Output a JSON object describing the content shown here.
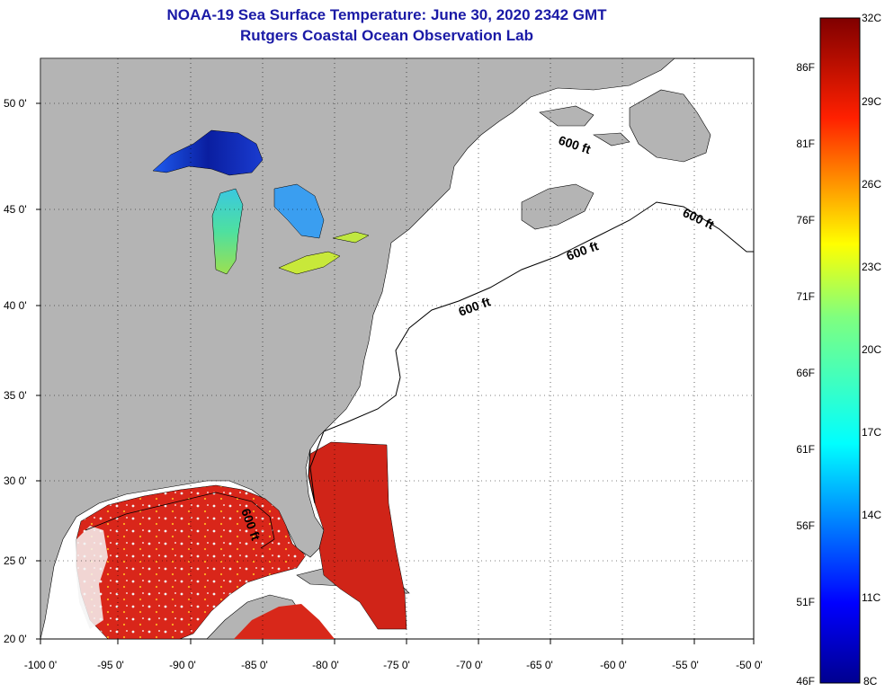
{
  "title": "NOAA-19 Sea Surface Temperature:  June 30, 2020 2342 GMT",
  "subtitle": "Rutgers Coastal Ocean Observation Lab",
  "map": {
    "lon_ticks": [
      "-100 0'",
      "-95 0'",
      "-90 0'",
      "-85 0'",
      "-80 0'",
      "-75 0'",
      "-70 0'",
      "-65 0'",
      "-60 0'",
      "-55 0'",
      "-50 0'"
    ],
    "lat_ticks": [
      "50 0'",
      "45 0'",
      "40 0'",
      "35 0'",
      "30 0'",
      "25 0'",
      "20 0'"
    ],
    "contour_label": "600 ft",
    "colors": {
      "land": "#b4b4b4",
      "ocean_no_data": "#ffffff",
      "gulf_warm": "#dd2a1a",
      "lakes_cold": "#1e3cc8"
    }
  },
  "colorbar": {
    "celsius_labels": [
      "32C",
      "29C",
      "26C",
      "23C",
      "20C",
      "17C",
      "14C",
      "11C",
      "8C"
    ],
    "fahrenheit_labels": [
      "86F",
      "81F",
      "76F",
      "71F",
      "66F",
      "61F",
      "56F",
      "51F",
      "46F"
    ],
    "range_c": [
      8,
      32
    ]
  }
}
